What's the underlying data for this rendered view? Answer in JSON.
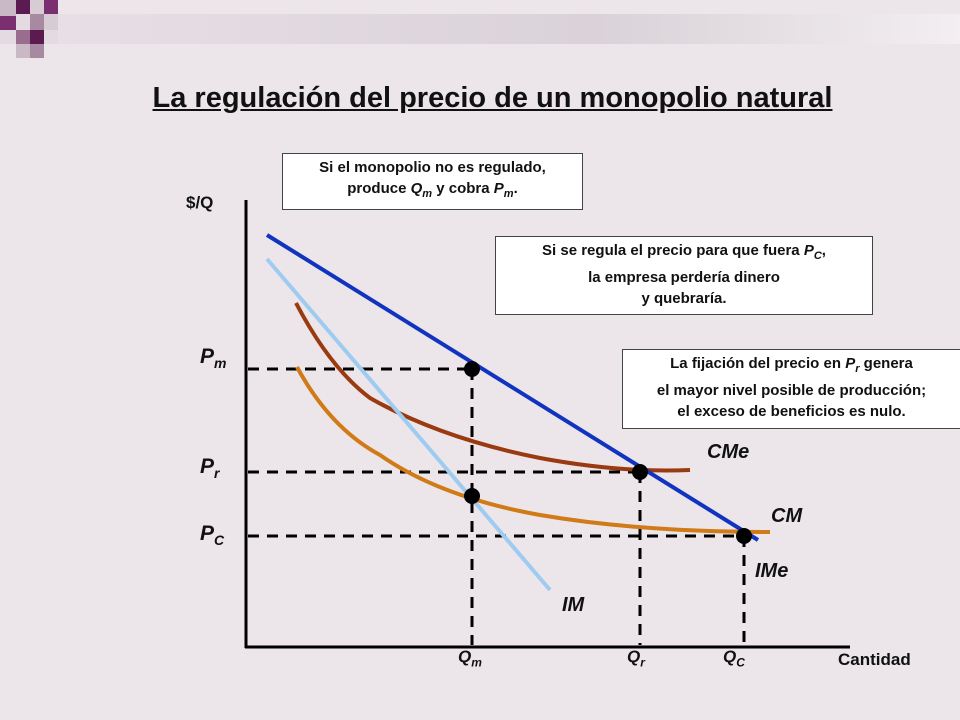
{
  "title": "La regulación del precio de un monopolio natural",
  "y_axis_label": "$/Q",
  "x_axis_label": "Cantidad",
  "boxes": {
    "unregulated": {
      "line1": "Si el monopolio no es regulado,",
      "line2_pre": "produce ",
      "line2_qm": "Q",
      "line2_qm_sub": "m",
      "line2_mid": " y cobra ",
      "line2_pm": "P",
      "line2_pm_sub": "m",
      "line2_end": "."
    },
    "pc_regulation": {
      "line1_pre": "Si se regula el precio para que fuera  ",
      "line1_p": "P",
      "line1_p_sub": "C",
      "line1_end": ",",
      "line2": "la empresa perdería dinero",
      "line3": "y quebraría."
    },
    "pr_regulation": {
      "line1_pre": "La fijación del precio en  ",
      "line1_p": "P",
      "line1_p_sub": "r",
      "line1_end": "  genera",
      "line2": "el mayor nivel posible de producción;",
      "line3": "el exceso de beneficios es nulo."
    }
  },
  "price_labels": [
    {
      "main": "P",
      "sub": "m"
    },
    {
      "main": "P",
      "sub": "r"
    },
    {
      "main": "P",
      "sub": "C"
    }
  ],
  "quantity_labels": [
    {
      "main": "Q",
      "sub": "m"
    },
    {
      "main": "Q",
      "sub": "r"
    },
    {
      "main": "Q",
      "sub": "C"
    }
  ],
  "curve_labels": {
    "average_cost": "CMe",
    "marginal_cost": "CM",
    "average_revenue": "IMe",
    "marginal_revenue": "IM"
  },
  "colors": {
    "demand_IMe": "#1033c0",
    "marginal_revenue_IM": "#9ecbf0",
    "average_cost_CMe": "#9a3a10",
    "marginal_cost_CM": "#d07a18",
    "background": "#ece6ea"
  }
}
